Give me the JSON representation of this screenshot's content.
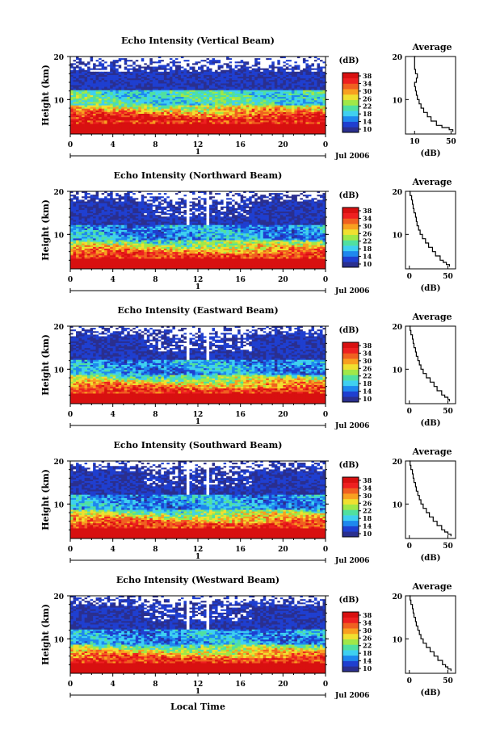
{
  "chart_data": {
    "type": "heatmap",
    "x_label": "Local Time",
    "y_label": "Height (km)",
    "x_ticks": [
      "0",
      "4",
      "8",
      "12",
      "16",
      "20",
      "0"
    ],
    "x_range": [
      0,
      24
    ],
    "y_ticks": [
      "20",
      "10"
    ],
    "y_range": [
      2,
      20
    ],
    "date_label": "Jul 2006",
    "day_label": "1",
    "colorbar": {
      "label": "(dB)",
      "ticks": [
        "38",
        "34",
        "30",
        "26",
        "22",
        "18",
        "14",
        "10"
      ],
      "colors": [
        "#2a2f8f",
        "#1f3fd0",
        "#1e88ee",
        "#3fd0f0",
        "#50e0a0",
        "#a0e848",
        "#f0e030",
        "#f8a020",
        "#f06020",
        "#ee2020",
        "#d81010"
      ]
    },
    "profile": {
      "title": "Average",
      "y_ticks": [
        "20",
        "10"
      ],
      "x_label": "(dB)"
    },
    "panels": [
      {
        "title": "Echo Intensity (Vertical Beam)",
        "profile_x_ticks": [
          "10",
          "50"
        ],
        "profile_xlim": [
          0,
          55
        ],
        "profile_heights": [
          2.5,
          3,
          3.5,
          4,
          5,
          6,
          7,
          8,
          9,
          10,
          11,
          12,
          13,
          14,
          15,
          16,
          17,
          18,
          19,
          20
        ],
        "profile_values": [
          52,
          48,
          40,
          34,
          28,
          24,
          20,
          17,
          15,
          13,
          12,
          11,
          10,
          12,
          13,
          11,
          10,
          10,
          10,
          11
        ]
      },
      {
        "title": "Echo Intensity (Northward Beam)",
        "profile_x_ticks": [
          "0",
          "50"
        ],
        "profile_xlim": [
          -5,
          60
        ],
        "profile_heights": [
          2.5,
          3,
          3.5,
          4,
          5,
          6,
          7,
          8,
          9,
          10,
          11,
          12,
          13,
          14,
          15,
          16,
          17,
          18,
          19,
          20
        ],
        "profile_values": [
          52,
          48,
          44,
          40,
          34,
          30,
          25,
          21,
          17,
          14,
          12,
          10,
          9,
          8,
          6,
          5,
          4,
          3,
          1,
          0
        ]
      },
      {
        "title": "Echo Intensity (Eastward Beam)",
        "profile_x_ticks": [
          "0",
          "50"
        ],
        "profile_xlim": [
          -5,
          60
        ],
        "profile_heights": [
          2.5,
          3,
          3.5,
          4,
          5,
          6,
          7,
          8,
          9,
          10,
          11,
          12,
          13,
          14,
          15,
          16,
          17,
          18,
          19,
          20
        ],
        "profile_values": [
          52,
          50,
          46,
          42,
          36,
          32,
          27,
          22,
          18,
          15,
          13,
          11,
          9,
          8,
          6,
          5,
          4,
          2,
          1,
          0
        ]
      },
      {
        "title": "Echo Intensity (Southward Beam)",
        "profile_x_ticks": [
          "0",
          "50"
        ],
        "profile_xlim": [
          -5,
          60
        ],
        "profile_heights": [
          2.5,
          3,
          3.5,
          4,
          5,
          6,
          7,
          8,
          9,
          10,
          11,
          12,
          13,
          14,
          15,
          16,
          17,
          18,
          19,
          20
        ],
        "profile_values": [
          54,
          50,
          46,
          42,
          36,
          31,
          26,
          22,
          18,
          15,
          13,
          11,
          9,
          8,
          6,
          5,
          4,
          2,
          1,
          0
        ]
      },
      {
        "title": "Echo Intensity (Westward Beam)",
        "profile_x_ticks": [
          "0",
          "50"
        ],
        "profile_xlim": [
          -5,
          60
        ],
        "profile_heights": [
          2.5,
          3,
          3.5,
          4,
          5,
          6,
          7,
          8,
          9,
          10,
          11,
          12,
          13,
          14,
          15,
          16,
          17,
          18,
          19,
          20
        ],
        "profile_values": [
          54,
          50,
          47,
          43,
          37,
          32,
          27,
          22,
          18,
          15,
          13,
          11,
          9,
          8,
          6,
          5,
          4,
          2,
          1,
          0
        ]
      }
    ]
  }
}
